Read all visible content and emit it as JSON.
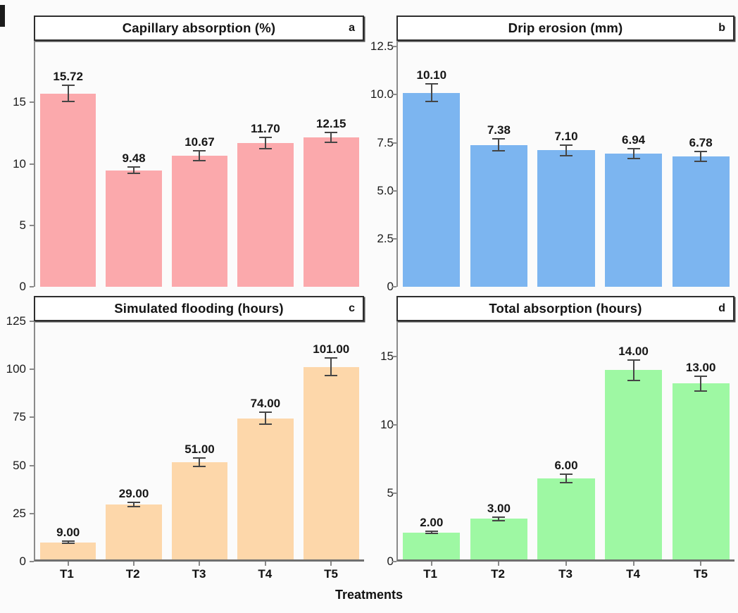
{
  "figure": {
    "xlabel": "Treatments",
    "background": "#fbfbfb",
    "axis_color": "#8a8a8a",
    "error_bar_color": "#454545"
  },
  "chart_data": [
    {
      "panel": "a",
      "type": "bar",
      "title": "Capillary absorption (%)",
      "categories": [
        "T1",
        "T2",
        "T3",
        "T4",
        "T5"
      ],
      "values": [
        15.72,
        9.48,
        10.67,
        11.7,
        12.15
      ],
      "value_labels": [
        "15.72",
        "9.48",
        "10.67",
        "11.70",
        "12.15"
      ],
      "errors": [
        0.7,
        0.3,
        0.45,
        0.5,
        0.45
      ],
      "bar_color": "#FBA9AC",
      "yticks": [
        0,
        5,
        10,
        15
      ],
      "ytick_labels": [
        "0",
        "5",
        "10",
        "15"
      ],
      "ylim": [
        0,
        20
      ],
      "grid": false,
      "show_x_labels": false
    },
    {
      "panel": "b",
      "type": "bar",
      "title": "Drip erosion (mm)",
      "categories": [
        "T1",
        "T2",
        "T3",
        "T4",
        "T5"
      ],
      "values": [
        10.1,
        7.38,
        7.1,
        6.94,
        6.78
      ],
      "value_labels": [
        "10.10",
        "7.38",
        "7.10",
        "6.94",
        "6.78"
      ],
      "errors": [
        0.5,
        0.35,
        0.3,
        0.3,
        0.3
      ],
      "bar_color": "#7CB5F0",
      "yticks": [
        0,
        2.5,
        5,
        7.5,
        10,
        12.5
      ],
      "ytick_labels": [
        "0",
        "2.5",
        "5.0",
        "7.5",
        "10.0",
        "12.5"
      ],
      "ylim": [
        0,
        12.8
      ],
      "grid": false,
      "show_x_labels": false
    },
    {
      "panel": "c",
      "type": "bar",
      "title": "Simulated flooding (hours)",
      "categories": [
        "T1",
        "T2",
        "T3",
        "T4",
        "T5"
      ],
      "values": [
        9,
        29,
        51,
        74,
        101
      ],
      "value_labels": [
        "9.00",
        "29.00",
        "51.00",
        "74.00",
        "101.00"
      ],
      "errors": [
        1,
        1.5,
        2.5,
        3.5,
        5
      ],
      "bar_color": "#FDD7AA",
      "yticks": [
        0,
        25,
        50,
        75,
        100,
        125
      ],
      "ytick_labels": [
        "0",
        "25",
        "50",
        "75",
        "100",
        "125"
      ],
      "ylim": [
        0,
        125
      ],
      "grid": false,
      "show_x_labels": true
    },
    {
      "panel": "d",
      "type": "bar",
      "title": "Total absorption (hours)",
      "categories": [
        "T1",
        "T2",
        "T3",
        "T4",
        "T5"
      ],
      "values": [
        2,
        3,
        6,
        14,
        13
      ],
      "value_labels": [
        "2.00",
        "3.00",
        "6.00",
        "14.00",
        "13.00"
      ],
      "errors": [
        0.15,
        0.2,
        0.35,
        0.8,
        0.6
      ],
      "bar_color": "#9EF8A3",
      "yticks": [
        0,
        5,
        10,
        15
      ],
      "ytick_labels": [
        "0",
        "5",
        "10",
        "15"
      ],
      "ylim": [
        0,
        17.6
      ],
      "grid": false,
      "show_x_labels": true
    }
  ]
}
